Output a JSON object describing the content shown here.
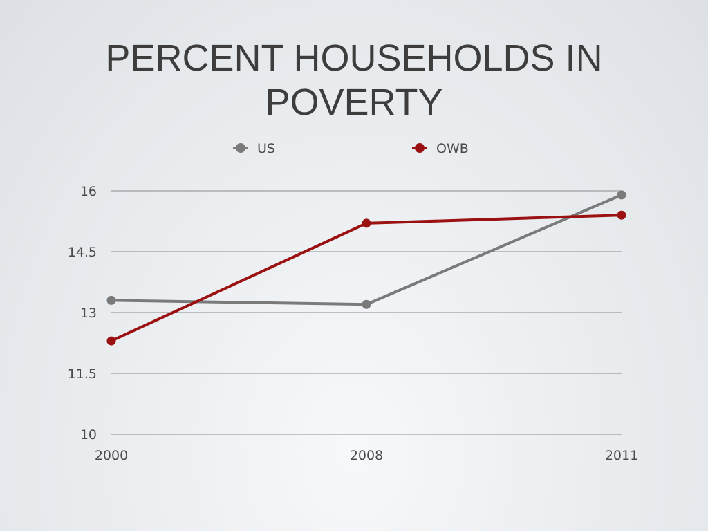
{
  "slide": {
    "title_line1": "PERCENT HOUSEHOLDS IN",
    "title_line2": "POVERTY"
  },
  "chart_data": {
    "type": "line",
    "title": "PERCENT HOUSEHOLDS IN POVERTY",
    "x": [
      "2000",
      "2008",
      "2011"
    ],
    "series": [
      {
        "name": "US",
        "values": [
          13.3,
          13.2,
          15.9
        ],
        "color": "#7a7a7a"
      },
      {
        "name": "OWB",
        "values": [
          12.3,
          15.2,
          15.4
        ],
        "color": "#9b1111"
      }
    ],
    "yticks": [
      "16",
      "14.5",
      "13",
      "11.5",
      "10"
    ],
    "ylim": [
      10,
      16
    ],
    "grid": true,
    "legend_position": "top"
  }
}
